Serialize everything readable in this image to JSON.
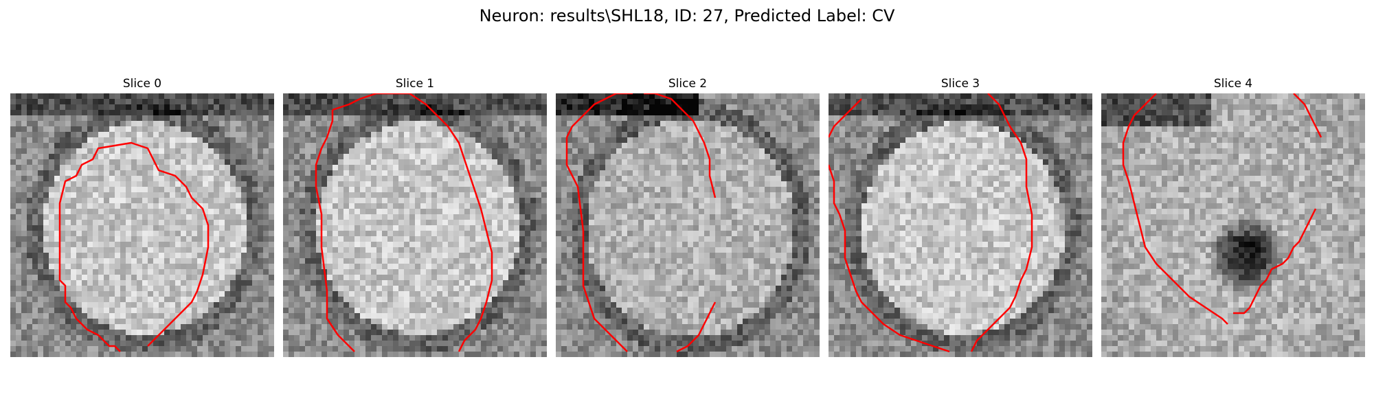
{
  "figure": {
    "title": "Neuron: results\\SHL18, ID: 27, Predicted Label: CV"
  },
  "colors": {
    "contour": "#ff0000",
    "background": "#ffffff"
  },
  "panels": [
    {
      "title": "Slice 0",
      "style": "bright-cell",
      "contours": [
        [
          [
            9,
            30
          ],
          [
            9,
            20
          ],
          [
            10,
            16
          ],
          [
            12,
            15
          ],
          [
            13,
            13
          ],
          [
            15,
            12
          ],
          [
            16,
            10
          ],
          [
            22,
            9
          ],
          [
            25,
            10
          ],
          [
            26,
            12
          ],
          [
            27,
            14
          ],
          [
            30,
            15
          ],
          [
            32,
            17
          ],
          [
            33,
            19
          ],
          [
            34,
            20
          ],
          [
            35,
            21
          ],
          [
            36,
            24
          ],
          [
            36,
            28
          ],
          [
            35,
            33
          ],
          [
            34,
            36
          ],
          [
            33,
            38
          ],
          [
            31,
            40
          ],
          [
            29,
            42
          ],
          [
            27,
            44
          ],
          [
            25,
            46
          ]
        ],
        [
          [
            9,
            30
          ],
          [
            9,
            34
          ],
          [
            10,
            35
          ],
          [
            10,
            38
          ],
          [
            11,
            39
          ],
          [
            12,
            41
          ],
          [
            13,
            42
          ],
          [
            14,
            43
          ],
          [
            16,
            44
          ],
          [
            17,
            45
          ],
          [
            18,
            46
          ],
          [
            19,
            46
          ],
          [
            20,
            47
          ]
        ]
      ]
    },
    {
      "title": "Slice 1",
      "style": "bright-cell",
      "contours": [
        [
          [
            9,
            3
          ],
          [
            9,
            5
          ],
          [
            8,
            8
          ],
          [
            7,
            10
          ],
          [
            6,
            13
          ],
          [
            6,
            17
          ],
          [
            7,
            22
          ],
          [
            7,
            28
          ],
          [
            8,
            36
          ],
          [
            8,
            41
          ],
          [
            10,
            44
          ],
          [
            12,
            46
          ],
          [
            13,
            47
          ]
        ],
        [
          [
            9,
            3
          ],
          [
            12,
            2
          ],
          [
            14,
            1
          ],
          [
            17,
            0
          ],
          [
            23,
            0
          ],
          [
            26,
            2
          ],
          [
            28,
            4
          ],
          [
            30,
            6
          ],
          [
            32,
            9
          ],
          [
            33,
            12
          ],
          [
            34,
            15
          ],
          [
            35,
            18
          ],
          [
            36,
            21
          ],
          [
            37,
            25
          ],
          [
            38,
            29
          ],
          [
            38,
            34
          ],
          [
            37,
            38
          ],
          [
            36,
            41
          ],
          [
            35,
            43
          ],
          [
            33,
            45
          ],
          [
            32,
            47
          ]
        ]
      ]
    },
    {
      "title": "Slice 2",
      "style": "textured-cell",
      "contours": [
        [
          [
            2,
            8
          ],
          [
            3,
            6
          ],
          [
            5,
            4
          ],
          [
            7,
            2
          ],
          [
            9,
            1
          ],
          [
            11,
            0
          ],
          [
            14,
            0
          ]
        ],
        [
          [
            16,
            0
          ],
          [
            18,
            0
          ],
          [
            21,
            1
          ],
          [
            23,
            3
          ],
          [
            25,
            5
          ],
          [
            26,
            7
          ],
          [
            27,
            9
          ],
          [
            28,
            12
          ],
          [
            28,
            15
          ],
          [
            29,
            19
          ]
        ],
        [
          [
            2,
            8
          ],
          [
            2,
            13
          ],
          [
            4,
            17
          ],
          [
            5,
            25
          ],
          [
            5,
            35
          ],
          [
            6,
            38
          ],
          [
            7,
            41
          ],
          [
            9,
            43
          ],
          [
            11,
            45
          ],
          [
            13,
            47
          ]
        ],
        [
          [
            29,
            38
          ],
          [
            28,
            40
          ],
          [
            27,
            42
          ],
          [
            26,
            44
          ],
          [
            24,
            46
          ],
          [
            22,
            47
          ]
        ]
      ]
    },
    {
      "title": "Slice 3",
      "style": "bright-cell",
      "contours": [
        [
          [
            0,
            8
          ],
          [
            1,
            6
          ],
          [
            3,
            4
          ],
          [
            6,
            1
          ]
        ],
        [
          [
            0,
            13
          ],
          [
            1,
            16
          ],
          [
            1,
            20
          ],
          [
            2,
            22
          ],
          [
            3,
            25
          ],
          [
            3,
            30
          ],
          [
            4,
            33
          ],
          [
            5,
            36
          ],
          [
            6,
            38
          ],
          [
            8,
            40
          ],
          [
            10,
            42
          ],
          [
            13,
            44
          ],
          [
            16,
            45
          ],
          [
            19,
            46
          ],
          [
            22,
            47
          ]
        ],
        [
          [
            29,
            0
          ],
          [
            31,
            2
          ],
          [
            32,
            4
          ],
          [
            33,
            6
          ],
          [
            35,
            9
          ],
          [
            36,
            12
          ],
          [
            36,
            17
          ],
          [
            37,
            22
          ],
          [
            37,
            28
          ],
          [
            36,
            32
          ],
          [
            35,
            34
          ],
          [
            34,
            37
          ],
          [
            33,
            39
          ],
          [
            31,
            41
          ],
          [
            29,
            43
          ],
          [
            27,
            45
          ],
          [
            26,
            47
          ]
        ]
      ]
    },
    {
      "title": "Slice 4",
      "style": "dark-nucleus",
      "contours": [
        [
          [
            10,
            0
          ],
          [
            8,
            2
          ],
          [
            6,
            4
          ],
          [
            5,
            6
          ],
          [
            4,
            9
          ],
          [
            4,
            13
          ],
          [
            5,
            16
          ],
          [
            6,
            20
          ],
          [
            7,
            24
          ],
          [
            8,
            28
          ],
          [
            10,
            31
          ],
          [
            13,
            34
          ],
          [
            16,
            37
          ],
          [
            19,
            39
          ],
          [
            22,
            41
          ],
          [
            23,
            42
          ]
        ],
        [
          [
            24,
            40
          ],
          [
            26,
            40
          ],
          [
            27,
            39
          ],
          [
            28,
            37
          ],
          [
            29,
            35
          ],
          [
            30,
            34
          ],
          [
            31,
            32
          ],
          [
            33,
            31
          ],
          [
            34,
            30
          ],
          [
            35,
            28
          ],
          [
            36,
            27
          ],
          [
            37,
            25
          ],
          [
            38,
            23
          ],
          [
            39,
            21
          ]
        ],
        [
          [
            35,
            0
          ],
          [
            37,
            2
          ],
          [
            38,
            4
          ],
          [
            39,
            6
          ],
          [
            40,
            8
          ]
        ]
      ]
    }
  ]
}
